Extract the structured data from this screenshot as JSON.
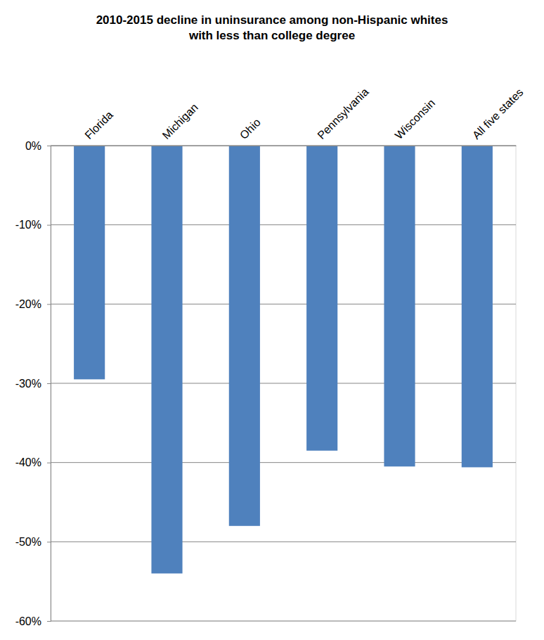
{
  "chart_data": {
    "type": "bar",
    "title": [
      "2010-2015 decline in uninsurance among non-Hispanic whites",
      "with less than college degree"
    ],
    "categories": [
      "Florida",
      "Michigan",
      "Ohio",
      "Pennsylvania",
      "Wisconsin",
      "All five states"
    ],
    "values": [
      -29.5,
      -54,
      -48,
      -38.5,
      -40.5,
      -40.6
    ],
    "color": "#4f81bd",
    "ylim": [
      -60,
      0
    ],
    "yticks": [
      {
        "value": 0,
        "label": "0%"
      },
      {
        "value": -10,
        "label": "-10%"
      },
      {
        "value": -20,
        "label": "-20%"
      },
      {
        "value": -30,
        "label": "-30%"
      },
      {
        "value": -40,
        "label": "-40%"
      },
      {
        "value": -50,
        "label": "-50%"
      },
      {
        "value": -60,
        "label": "-60%"
      }
    ],
    "grid": true
  }
}
